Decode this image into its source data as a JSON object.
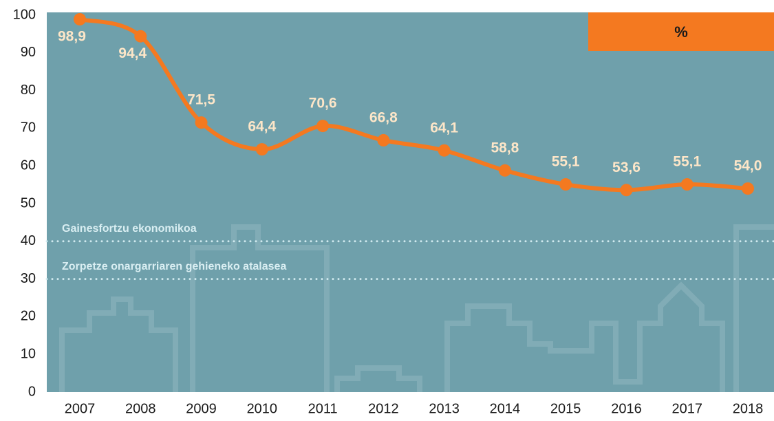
{
  "chart_data": {
    "type": "line",
    "unit": "%",
    "categories": [
      "2007",
      "2008",
      "2009",
      "2010",
      "2011",
      "2012",
      "2013",
      "2014",
      "2015",
      "2016",
      "2017",
      "2018"
    ],
    "values": [
      98.9,
      94.4,
      71.5,
      64.4,
      70.6,
      66.8,
      64.1,
      58.8,
      55.1,
      53.6,
      55.1,
      54.0
    ],
    "value_labels": [
      "98,9",
      "94,4",
      "71,5",
      "64,4",
      "70,6",
      "66,8",
      "64,1",
      "58,8",
      "55,1",
      "53,6",
      "55,1",
      "54,0"
    ],
    "color": "#f47920",
    "ylim": [
      0,
      100
    ],
    "yticks": [
      0,
      10,
      20,
      30,
      40,
      50,
      60,
      70,
      80,
      90,
      100
    ],
    "reference_lines": [
      {
        "value": 40,
        "label": "Gainesfortzu ekonomikoa"
      },
      {
        "value": 30,
        "label": "Zorpetze onargarriaren gehieneko atalasea"
      }
    ],
    "reference_color": "#cfe9ee",
    "background": "#6fa0ab",
    "grid": false
  }
}
